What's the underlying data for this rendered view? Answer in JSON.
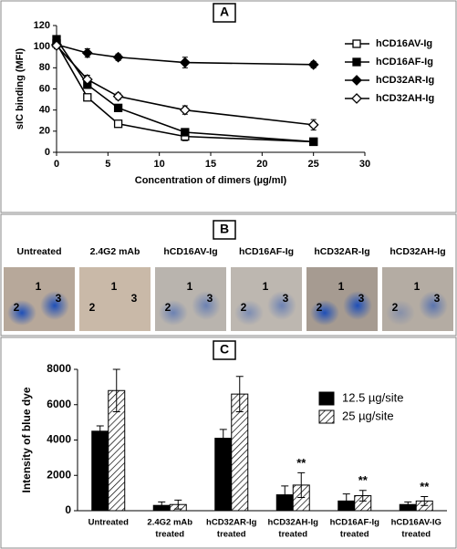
{
  "chart_data": [
    {
      "type": "line",
      "panel_label": "A",
      "x_label": "Concentration of dimers (µg/ml)",
      "y_label": "sIC binding (MFI)",
      "x": [
        0,
        3,
        6,
        12.5,
        25
      ],
      "xlim": [
        0,
        30
      ],
      "xticks": [
        0,
        5,
        10,
        15,
        20,
        25,
        30
      ],
      "ylim": [
        0,
        120
      ],
      "yticks": [
        0,
        20,
        40,
        60,
        80,
        100,
        120
      ],
      "series": [
        {
          "name": "hCD16AV-Ig",
          "color": "#000000",
          "marker": "square",
          "filled": false,
          "values": [
            103,
            52,
            27,
            15,
            10
          ],
          "errors": [
            3,
            3,
            3,
            4,
            1
          ]
        },
        {
          "name": "hCD16AF-Ig",
          "color": "#000000",
          "marker": "square",
          "filled": true,
          "values": [
            107,
            64,
            42,
            19,
            10
          ],
          "errors": [
            3,
            3,
            3,
            2,
            1
          ]
        },
        {
          "name": "hCD32AR-Ig",
          "color": "#000000",
          "marker": "diamond",
          "filled": true,
          "values": [
            102,
            94,
            90,
            85,
            83
          ],
          "errors": [
            3,
            4,
            3,
            5,
            3
          ]
        },
        {
          "name": "hCD32AH-Ig",
          "color": "#000000",
          "marker": "diamond",
          "filled": false,
          "values": [
            101,
            69,
            53,
            40,
            26
          ],
          "errors": [
            3,
            4,
            3,
            4,
            5
          ]
        }
      ]
    },
    {
      "type": "bar",
      "panel_label": "C",
      "y_label": "Intensity of blue dye",
      "categories": [
        [
          "Untreated"
        ],
        [
          "2.4G2 mAb",
          "treated"
        ],
        [
          "hCD32AR-Ig",
          "treated"
        ],
        [
          "hCD32AH-Ig",
          "treated"
        ],
        [
          "hCD16AF-Ig",
          "treated"
        ],
        [
          "hCD16AV-IG",
          "treated"
        ]
      ],
      "significance": [
        null,
        null,
        null,
        "**",
        "**",
        "**"
      ],
      "ylim": [
        0,
        8000
      ],
      "yticks": [
        0,
        2000,
        4000,
        6000,
        8000
      ],
      "series": [
        {
          "name": "12.5 µg/site",
          "color": "#000000",
          "pattern": "solid",
          "values": [
            4500,
            300,
            4100,
            900,
            550,
            350
          ],
          "errors": [
            300,
            200,
            500,
            500,
            400,
            150
          ]
        },
        {
          "name": "25 µg/site",
          "color": "#ffffff",
          "pattern": "diagonal",
          "values": [
            6800,
            350,
            6600,
            1450,
            850,
            550
          ],
          "errors": [
            1200,
            250,
            1000,
            700,
            300,
            250
          ]
        }
      ]
    }
  ],
  "images_panel": {
    "panel_label": "B",
    "spot_labels": [
      "1",
      "2",
      "3"
    ],
    "images": [
      "Untreated",
      "2.4G2 mAb",
      "hCD16AV-Ig",
      "hCD16AF-Ig",
      "hCD32AR-Ig",
      "hCD32AH-Ig"
    ]
  }
}
